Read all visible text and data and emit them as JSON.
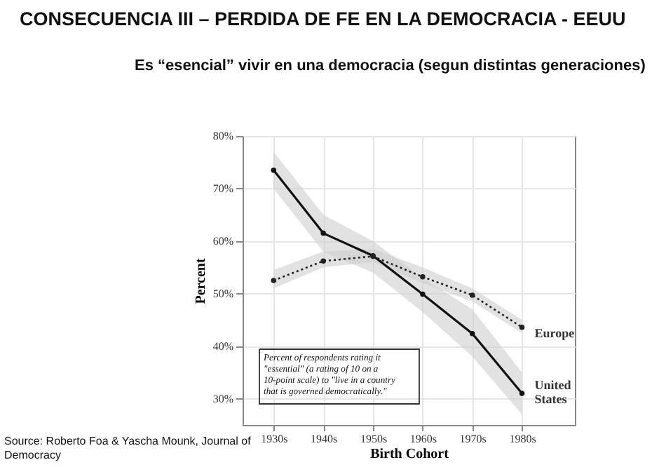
{
  "chart_data": {
    "type": "line",
    "title": "CONSECUENCIA III – PERDIDA DE FE EN LA DEMOCRACIA - EEUU",
    "subtitle": "Es “esencial” vivir en una democracia (segun distintas generaciones)",
    "xlabel": "Birth Cohort",
    "ylabel": "Percent",
    "categories": [
      "1930s",
      "1940s",
      "1950s",
      "1960s",
      "1970s",
      "1980s"
    ],
    "ylim": [
      25,
      80
    ],
    "yticks": [
      {
        "value": 30,
        "label": "30%"
      },
      {
        "value": 40,
        "label": "40%"
      },
      {
        "value": 50,
        "label": "50%"
      },
      {
        "value": 60,
        "label": "60%"
      },
      {
        "value": 70,
        "label": "70%"
      },
      {
        "value": 80,
        "label": "80%"
      }
    ],
    "grid": true,
    "marker": "circle",
    "series": [
      {
        "name": "United States",
        "color": "#111111",
        "line_style": "solid",
        "values": [
          73.5,
          61.5,
          57.2,
          49.9,
          42.4,
          31.0
        ],
        "lower": [
          70,
          58,
          54,
          46.5,
          38,
          27
        ],
        "upper": [
          77,
          65,
          60,
          53,
          47,
          35
        ]
      },
      {
        "name": "Europe",
        "color": "#222222",
        "line_style": "dotted",
        "values": [
          52.5,
          56.2,
          57.1,
          53.2,
          49.7,
          43.6
        ],
        "lower": [
          51,
          55,
          56,
          52,
          48.5,
          42.5
        ],
        "upper": [
          54.5,
          58,
          58.5,
          55,
          51,
          45
        ]
      }
    ],
    "annotations": [
      "Percent of respondents rating it \"essential\" (a rating of 10 on a 10-point scale) to \"live in a country that is governed democratically.\"",
      "Source: Roberto Foa & Yascha Mounk, Journal of Democracy"
    ]
  }
}
